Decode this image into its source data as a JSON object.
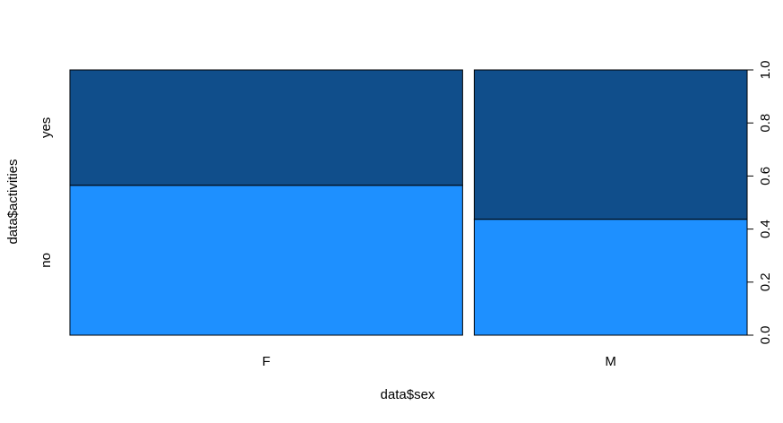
{
  "chart_data": {
    "type": "spineplot",
    "title": "",
    "xlabel": "data$sex",
    "ylabel": "data$activities",
    "categories": [
      "F",
      "M"
    ],
    "category_proportions": [
      0.59,
      0.41
    ],
    "levels": [
      "no",
      "yes"
    ],
    "series": [
      {
        "name": "no",
        "color": "#1e90ff",
        "values": [
          0.565,
          0.437
        ]
      },
      {
        "name": "yes",
        "color": "#104e8b",
        "values": [
          0.435,
          0.563
        ]
      }
    ],
    "ylim": [
      0,
      1
    ],
    "y_ticks": [
      "0.0",
      "0.2",
      "0.4",
      "0.6",
      "0.8",
      "1.0"
    ],
    "grid": false
  }
}
